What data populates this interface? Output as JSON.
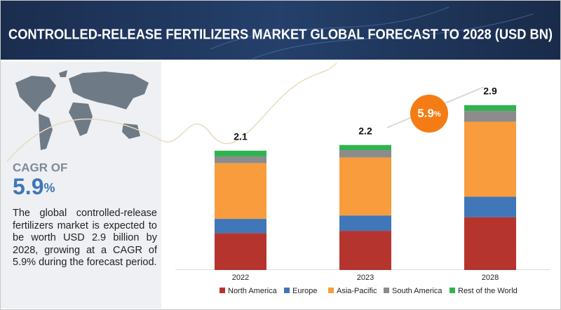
{
  "header": {
    "title": "CONTROLLED-RELEASE FERTILIZERS MARKET GLOBAL FORECAST TO 2028 (USD BN)"
  },
  "side_panel": {
    "cagr_label": "CAGR OF",
    "cagr_value": "5.9",
    "cagr_unit": "%",
    "description": "The global controlled-release fertilizers market is expected to be worth USD 2.9 billion by 2028, growing at a CAGR of 5.9% during the forecast period."
  },
  "chart_data": {
    "type": "stacked_bar",
    "categories": [
      "2022",
      "2023",
      "2028"
    ],
    "totals": [
      2.1,
      2.2,
      2.9
    ],
    "series": [
      {
        "name": "North America",
        "color": "#b5342e",
        "values": [
          0.65,
          0.69,
          0.93
        ]
      },
      {
        "name": "Europe",
        "color": "#3f77b9",
        "values": [
          0.25,
          0.27,
          0.36
        ]
      },
      {
        "name": "Asia-Pacific",
        "color": "#f89c3e",
        "values": [
          0.98,
          1.02,
          1.32
        ]
      },
      {
        "name": "South America",
        "color": "#8c8c8c",
        "values": [
          0.12,
          0.13,
          0.19
        ]
      },
      {
        "name": "Rest of the World",
        "color": "#2fb34e",
        "values": [
          0.1,
          0.09,
          0.1
        ]
      }
    ],
    "bubble": {
      "value": "5.9",
      "unit": "%"
    },
    "legend": "bottom"
  }
}
